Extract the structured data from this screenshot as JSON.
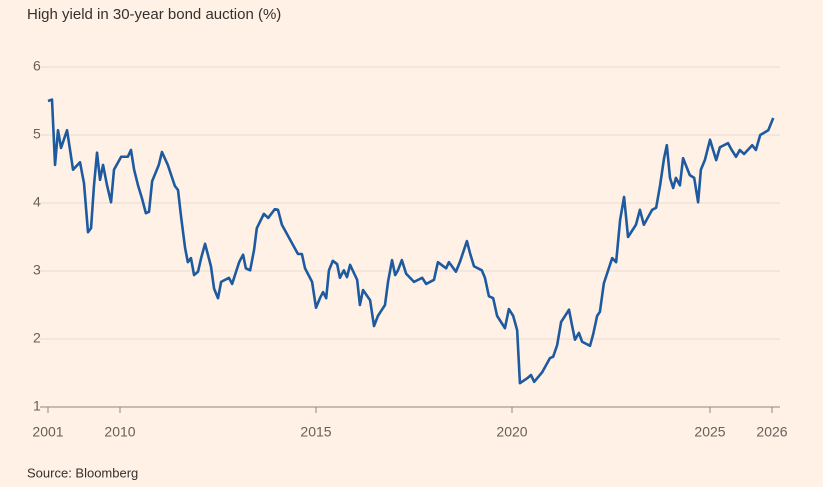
{
  "chart_data": {
    "type": "line",
    "title": "High yield in 30-year bond auction (%)",
    "source": "Source: Bloomberg",
    "x": [
      2001.0,
      2001.5,
      2001.88,
      2002.25,
      2002.63,
      2003.38,
      2004.13,
      2005.0,
      2005.5,
      2006.0,
      2006.38,
      2006.75,
      2007.13,
      2007.5,
      2007.88,
      2008.38,
      2008.88,
      2009.25,
      2010.03,
      2010.2,
      2010.28,
      2010.36,
      2010.46,
      2010.56,
      2010.66,
      2010.74,
      2010.82,
      2010.99,
      2011.07,
      2011.22,
      2011.4,
      2011.48,
      2011.56,
      2011.66,
      2011.73,
      2011.81,
      2011.89,
      2011.99,
      2012.07,
      2012.17,
      2012.32,
      2012.4,
      2012.5,
      2012.58,
      2012.78,
      2012.86,
      2013.04,
      2013.14,
      2013.21,
      2013.32,
      2013.42,
      2013.49,
      2013.67,
      2013.78,
      2013.95,
      2014.03,
      2014.13,
      2014.34,
      2014.54,
      2014.64,
      2014.72,
      2014.9,
      2015.0,
      2015.1,
      2015.18,
      2015.26,
      2015.33,
      2015.43,
      2015.54,
      2015.61,
      2015.71,
      2015.79,
      2015.87,
      2016.05,
      2016.12,
      2016.2,
      2016.38,
      2016.48,
      2016.58,
      2016.76,
      2016.84,
      2016.94,
      2017.02,
      2017.09,
      2017.19,
      2017.3,
      2017.5,
      2017.71,
      2017.81,
      2018.01,
      2018.11,
      2018.32,
      2018.39,
      2018.57,
      2018.67,
      2018.85,
      2018.93,
      2019.03,
      2019.23,
      2019.31,
      2019.41,
      2019.52,
      2019.62,
      2019.82,
      2019.92,
      2020.03,
      2020.13,
      2020.2,
      2020.4,
      2020.48,
      2020.56,
      2020.76,
      2020.96,
      2021.04,
      2021.14,
      2021.24,
      2021.44,
      2021.52,
      2021.59,
      2021.69,
      2021.77,
      2021.97,
      2022.05,
      2022.15,
      2022.22,
      2022.32,
      2022.53,
      2022.63,
      2022.73,
      2022.83,
      2022.93,
      2023.13,
      2023.23,
      2023.33,
      2023.54,
      2023.64,
      2023.74,
      2023.84,
      2023.91,
      2023.99,
      2024.07,
      2024.14,
      2024.24,
      2024.32,
      2024.49,
      2024.6,
      2024.7,
      2024.77,
      2024.87,
      2025.0,
      2025.05,
      2025.1,
      2025.16,
      2025.29,
      2025.35,
      2025.42,
      2025.48,
      2025.55,
      2025.68,
      2025.74,
      2025.81,
      2025.94,
      2026.02
    ],
    "series": [
      {
        "name": "High yield",
        "color": "#1e5aa0",
        "values": [
          5.5,
          5.52,
          4.56,
          5.07,
          4.81,
          5.07,
          4.49,
          4.6,
          4.29,
          3.57,
          3.63,
          4.26,
          4.74,
          4.34,
          4.56,
          4.26,
          4.01,
          4.49,
          4.68,
          4.68,
          4.78,
          4.49,
          4.26,
          4.07,
          3.85,
          3.87,
          4.32,
          4.56,
          4.75,
          4.56,
          4.25,
          4.19,
          3.79,
          3.34,
          3.13,
          3.19,
          2.94,
          2.99,
          3.19,
          3.4,
          3.07,
          2.74,
          2.6,
          2.84,
          2.9,
          2.81,
          3.13,
          3.24,
          3.04,
          3.01,
          3.31,
          3.63,
          3.84,
          3.78,
          3.91,
          3.9,
          3.68,
          3.46,
          3.25,
          3.25,
          3.04,
          2.84,
          2.46,
          2.6,
          2.69,
          2.6,
          3.01,
          3.15,
          3.1,
          2.9,
          3.01,
          2.91,
          3.09,
          2.87,
          2.5,
          2.72,
          2.57,
          2.19,
          2.34,
          2.5,
          2.85,
          3.16,
          2.94,
          3.01,
          3.16,
          2.96,
          2.84,
          2.9,
          2.81,
          2.87,
          3.13,
          3.04,
          3.13,
          2.99,
          3.13,
          3.44,
          3.26,
          3.07,
          3.01,
          2.9,
          2.63,
          2.6,
          2.34,
          2.16,
          2.44,
          2.34,
          2.13,
          1.35,
          1.43,
          1.47,
          1.37,
          1.51,
          1.72,
          1.74,
          1.91,
          2.25,
          2.43,
          2.19,
          1.99,
          2.09,
          1.96,
          1.9,
          2.07,
          2.34,
          2.4,
          2.82,
          3.19,
          3.13,
          3.75,
          4.09,
          3.5,
          3.68,
          3.9,
          3.68,
          3.9,
          3.93,
          4.26,
          4.66,
          4.85,
          4.37,
          4.22,
          4.37,
          4.26,
          4.66,
          4.41,
          4.37,
          4.01,
          4.49,
          4.63,
          4.93,
          4.78,
          4.63,
          4.82,
          4.88,
          4.78,
          4.68,
          4.78,
          4.72,
          4.85,
          4.78,
          5.0,
          5.07,
          5.25
        ]
      }
    ],
    "xlim": [
      2001,
      2026.02
    ],
    "xticks": [
      2001,
      2010,
      2015,
      2020,
      2025,
      2026
    ],
    "ylim": [
      1,
      6
    ],
    "yticks": [
      1,
      2,
      3,
      4,
      5,
      6
    ],
    "grid": true
  }
}
